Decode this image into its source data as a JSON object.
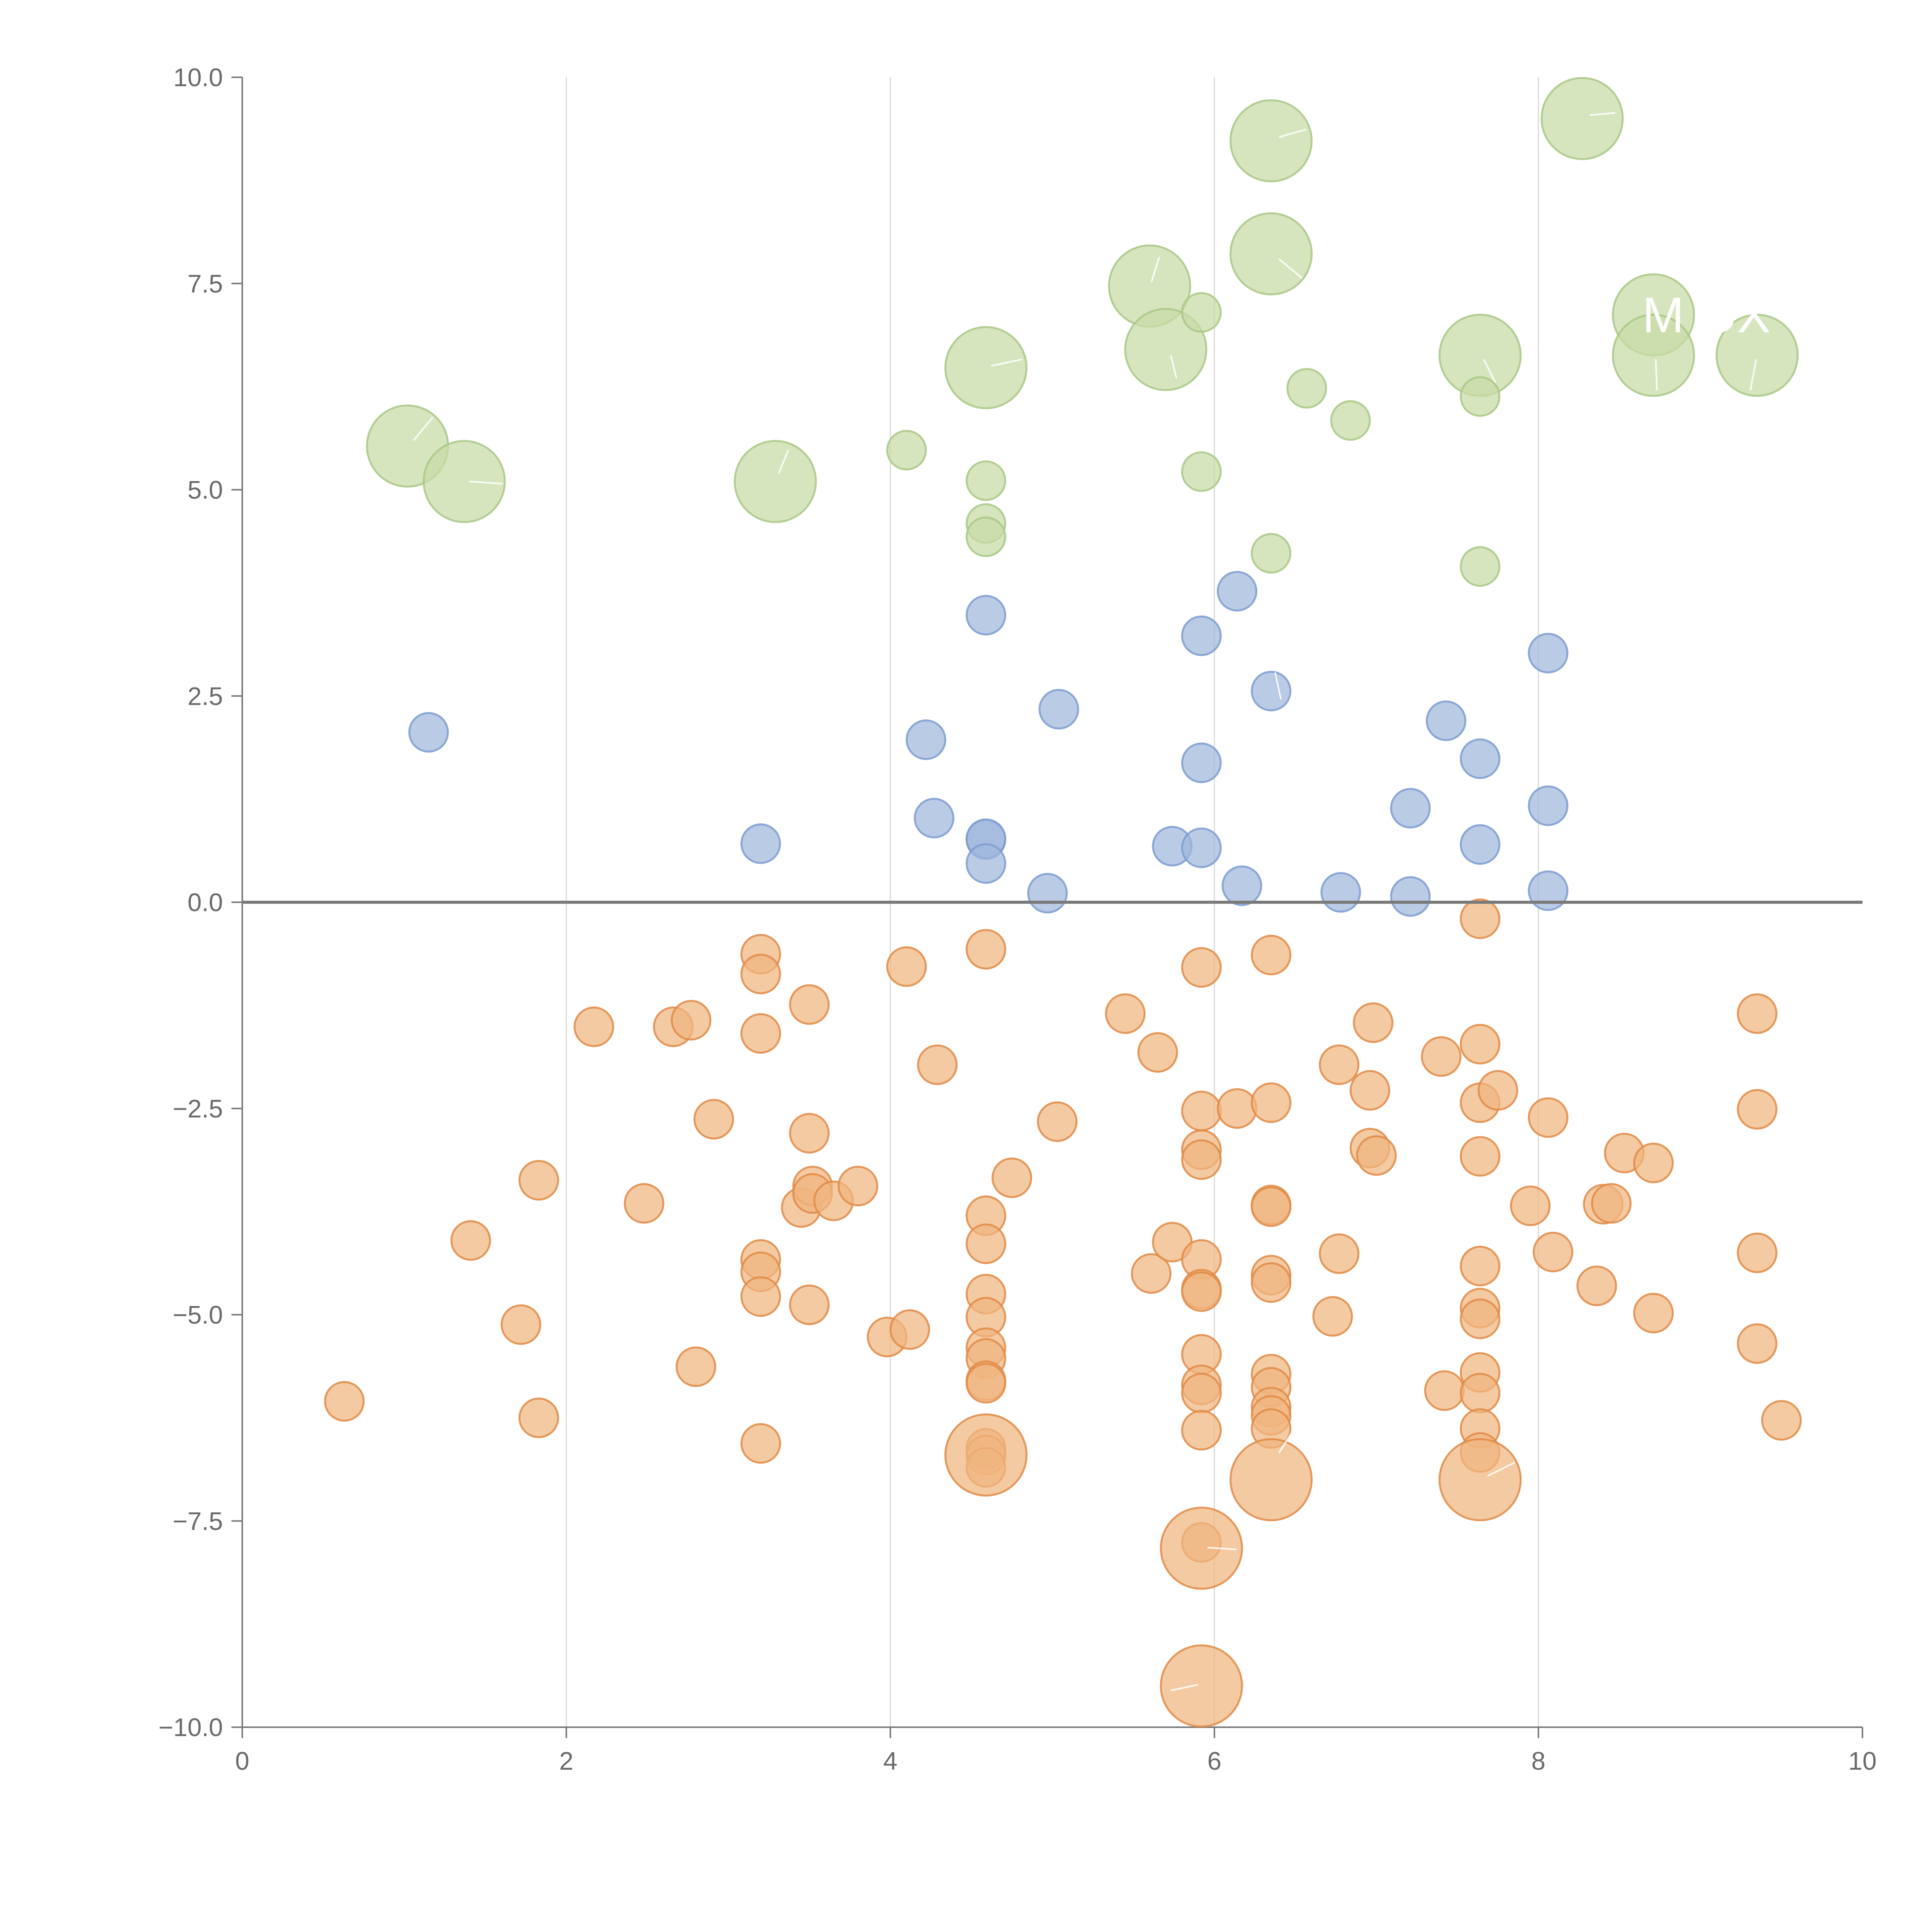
{
  "chart_data": {
    "type": "scatter",
    "title": "",
    "xlabel": "",
    "ylabel": "",
    "xlim": [
      0,
      10
    ],
    "ylim": [
      -10,
      10
    ],
    "x_ticks": [
      "0",
      "2",
      "4",
      "6",
      "8",
      "10"
    ],
    "y_ticks": [
      "10.0",
      "7.5",
      "5.0",
      "2.5",
      "0.0",
      "−2.5",
      "−5.0",
      "−7.5",
      "−10.0"
    ],
    "x_tick_values": [
      0,
      2,
      4,
      6,
      8,
      10
    ],
    "y_tick_values": [
      10,
      7.5,
      5,
      2.5,
      0,
      -2.5,
      -5,
      -7.5,
      -10
    ],
    "vertical_grid": [
      2,
      4,
      6,
      8
    ],
    "zero_line": 0,
    "colors": {
      "orange_fill": "#f0b57f",
      "orange_stroke": "#e08a45",
      "blue_fill": "#9fb7dd",
      "blue_stroke": "#7d9ccf",
      "green_fill": "#c7dba6",
      "green_stroke": "#a9c785",
      "axis": "#7a7a7a",
      "grid": "#d9d9d9"
    },
    "callouts": [
      "M OX"
    ],
    "series": [
      {
        "name": "orange",
        "fill_key": "orange_fill",
        "stroke_key": "orange_stroke",
        "points": [
          [
            0.63,
            -6.05,
            1
          ],
          [
            1.41,
            -4.1,
            1
          ],
          [
            1.72,
            -5.12,
            1
          ],
          [
            1.83,
            -3.37,
            1
          ],
          [
            1.83,
            -6.25,
            1
          ],
          [
            2.17,
            -1.51,
            1
          ],
          [
            2.48,
            -3.65,
            1
          ],
          [
            2.66,
            -1.51,
            1
          ],
          [
            2.77,
            -1.43,
            1
          ],
          [
            2.8,
            -5.63,
            1
          ],
          [
            2.91,
            -2.63,
            1
          ],
          [
            3.2,
            -0.63,
            1
          ],
          [
            3.2,
            -0.87,
            1
          ],
          [
            3.2,
            -1.59,
            1
          ],
          [
            3.2,
            -4.33,
            1
          ],
          [
            3.2,
            -4.48,
            1
          ],
          [
            3.2,
            -4.78,
            1
          ],
          [
            3.2,
            -6.56,
            1
          ],
          [
            3.45,
            -3.7,
            1
          ],
          [
            3.5,
            -1.24,
            1
          ],
          [
            3.5,
            -2.8,
            1
          ],
          [
            3.52,
            -3.44,
            1
          ],
          [
            3.52,
            -3.53,
            1
          ],
          [
            3.5,
            -4.88,
            1
          ],
          [
            3.65,
            -3.62,
            1
          ],
          [
            3.8,
            -3.44,
            1
          ],
          [
            3.98,
            -5.27,
            1
          ],
          [
            4.1,
            -0.78,
            1
          ],
          [
            4.12,
            -5.18,
            1
          ],
          [
            4.29,
            -1.97,
            1
          ],
          [
            4.59,
            -0.57,
            1
          ],
          [
            4.59,
            -3.8,
            1
          ],
          [
            4.59,
            -4.14,
            1
          ],
          [
            4.59,
            -4.75,
            1
          ],
          [
            4.59,
            -5.03,
            1
          ],
          [
            4.59,
            -5.4,
            1
          ],
          [
            4.59,
            -5.53,
            1
          ],
          [
            4.59,
            -5.8,
            1
          ],
          [
            4.59,
            -5.83,
            1
          ],
          [
            4.59,
            -6.62,
            1
          ],
          [
            4.59,
            -6.7,
            1
          ],
          [
            4.59,
            -6.85,
            1
          ],
          [
            4.59,
            -6.7,
            2.1
          ],
          [
            4.75,
            -3.34,
            1
          ],
          [
            5.03,
            -2.66,
            1
          ],
          [
            5.45,
            -1.35,
            1
          ],
          [
            5.65,
            -1.82,
            1
          ],
          [
            5.61,
            -4.5,
            1
          ],
          [
            5.74,
            -4.12,
            1
          ],
          [
            5.92,
            -0.79,
            1
          ],
          [
            5.92,
            -2.53,
            1
          ],
          [
            5.92,
            -3.0,
            1
          ],
          [
            5.92,
            -3.12,
            1
          ],
          [
            5.92,
            -4.33,
            1
          ],
          [
            5.92,
            -4.69,
            1
          ],
          [
            5.92,
            -4.72,
            1
          ],
          [
            5.92,
            -5.48,
            1
          ],
          [
            5.92,
            -5.85,
            1
          ],
          [
            5.92,
            -5.95,
            1
          ],
          [
            5.92,
            -6.4,
            1
          ],
          [
            5.92,
            -7.76,
            1
          ],
          [
            5.92,
            -7.83,
            2.1
          ],
          [
            5.92,
            -9.5,
            2.1
          ],
          [
            6.14,
            -2.5,
            1
          ],
          [
            6.35,
            -0.64,
            1
          ],
          [
            6.35,
            -2.43,
            1
          ],
          [
            6.35,
            -3.67,
            1
          ],
          [
            6.35,
            -3.69,
            1
          ],
          [
            6.35,
            -4.52,
            1
          ],
          [
            6.35,
            -4.61,
            1
          ],
          [
            6.35,
            -5.72,
            1
          ],
          [
            6.35,
            -5.88,
            1
          ],
          [
            6.35,
            -6.12,
            1
          ],
          [
            6.35,
            -6.22,
            1
          ],
          [
            6.35,
            -6.38,
            1
          ],
          [
            6.35,
            -7.0,
            2.1
          ],
          [
            6.73,
            -5.02,
            1
          ],
          [
            6.77,
            -1.97,
            1
          ],
          [
            6.77,
            -4.26,
            1
          ],
          [
            6.96,
            -2.98,
            1
          ],
          [
            6.96,
            -2.28,
            1
          ],
          [
            6.98,
            -1.46,
            1
          ],
          [
            7.0,
            -3.07,
            1
          ],
          [
            7.4,
            -1.87,
            1
          ],
          [
            7.42,
            -5.92,
            1
          ],
          [
            7.64,
            -0.2,
            1
          ],
          [
            7.64,
            -1.72,
            1
          ],
          [
            7.64,
            -2.43,
            1
          ],
          [
            7.64,
            -3.08,
            1
          ],
          [
            7.64,
            -4.41,
            1
          ],
          [
            7.64,
            -4.92,
            1
          ],
          [
            7.64,
            -5.05,
            1
          ],
          [
            7.64,
            -5.7,
            1
          ],
          [
            7.64,
            -5.95,
            1
          ],
          [
            7.64,
            -6.38,
            1
          ],
          [
            7.64,
            -6.67,
            1
          ],
          [
            7.64,
            -7.0,
            2.1
          ],
          [
            7.75,
            -2.28,
            1
          ],
          [
            7.95,
            -3.68,
            1
          ],
          [
            8.06,
            -2.61,
            1
          ],
          [
            8.09,
            -4.24,
            1
          ],
          [
            8.36,
            -4.65,
            1
          ],
          [
            8.4,
            -3.66,
            1
          ],
          [
            8.45,
            -3.65,
            1
          ],
          [
            8.53,
            -3.04,
            1
          ],
          [
            8.71,
            -3.16,
            1
          ],
          [
            8.71,
            -4.98,
            1
          ],
          [
            9.35,
            -1.35,
            1
          ],
          [
            9.35,
            -2.51,
            1
          ],
          [
            9.35,
            -4.25,
            1
          ],
          [
            9.35,
            -5.35,
            1
          ],
          [
            9.5,
            -6.28,
            1
          ]
        ]
      },
      {
        "name": "blue",
        "fill_key": "blue_fill",
        "stroke_key": "blue_stroke",
        "points": [
          [
            1.15,
            2.06,
            1
          ],
          [
            3.2,
            0.71,
            1
          ],
          [
            4.22,
            1.97,
            1
          ],
          [
            4.27,
            1.02,
            1
          ],
          [
            4.59,
            3.48,
            1
          ],
          [
            4.59,
            0.76,
            1
          ],
          [
            4.59,
            0.77,
            1
          ],
          [
            4.59,
            0.47,
            1
          ],
          [
            4.97,
            0.11,
            1
          ],
          [
            5.04,
            2.34,
            1
          ],
          [
            5.74,
            0.68,
            1
          ],
          [
            5.92,
            3.23,
            1
          ],
          [
            5.92,
            1.69,
            1
          ],
          [
            5.92,
            0.66,
            1
          ],
          [
            6.14,
            3.77,
            1
          ],
          [
            6.17,
            0.2,
            1
          ],
          [
            6.35,
            2.56,
            1
          ],
          [
            6.78,
            0.12,
            1
          ],
          [
            7.21,
            1.14,
            1
          ],
          [
            7.21,
            0.07,
            1
          ],
          [
            7.43,
            2.2,
            1
          ],
          [
            7.64,
            1.74,
            1
          ],
          [
            7.64,
            0.7,
            1
          ],
          [
            8.06,
            3.02,
            1
          ],
          [
            8.06,
            1.17,
            1
          ],
          [
            8.06,
            0.14,
            1
          ]
        ]
      },
      {
        "name": "green",
        "fill_key": "green_fill",
        "stroke_key": "green_stroke",
        "points": [
          [
            1.02,
            5.53,
            2.1
          ],
          [
            1.37,
            5.1,
            2.1
          ],
          [
            3.29,
            5.1,
            2.1
          ],
          [
            4.1,
            5.48,
            1
          ],
          [
            4.59,
            6.48,
            2.1
          ],
          [
            4.59,
            5.11,
            1
          ],
          [
            4.59,
            4.59,
            1
          ],
          [
            4.59,
            4.43,
            1
          ],
          [
            5.6,
            7.47,
            2.1
          ],
          [
            5.7,
            6.7,
            2.1
          ],
          [
            5.92,
            7.15,
            1
          ],
          [
            5.92,
            5.22,
            1
          ],
          [
            6.35,
            9.23,
            2.1
          ],
          [
            6.35,
            7.86,
            2.1
          ],
          [
            6.35,
            4.23,
            1
          ],
          [
            6.57,
            6.23,
            1
          ],
          [
            6.84,
            5.84,
            1
          ],
          [
            7.64,
            6.63,
            2.1
          ],
          [
            7.64,
            6.13,
            1
          ],
          [
            7.64,
            4.07,
            1
          ],
          [
            8.27,
            9.5,
            2.1
          ],
          [
            8.71,
            7.12,
            2.1
          ],
          [
            8.71,
            6.63,
            2.1
          ],
          [
            9.35,
            6.63,
            2.1
          ]
        ]
      }
    ]
  }
}
